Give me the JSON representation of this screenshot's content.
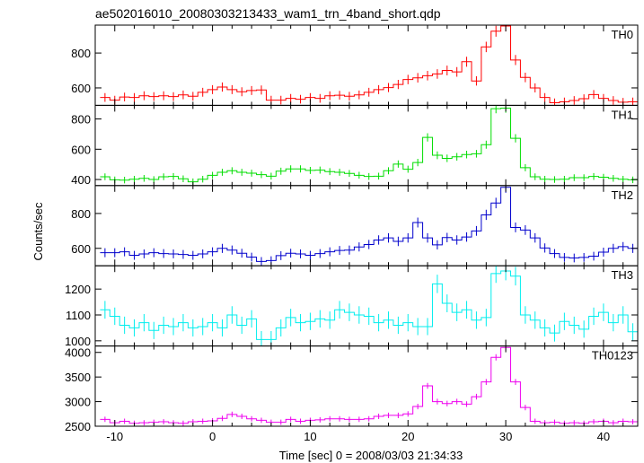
{
  "chart_data": {
    "type": "line",
    "title": "ae502016010_20080303213433_wam1_trn_4band_short.qdp",
    "xlabel": "Time [sec] 0 = 2008/03/03 21:34:33",
    "ylabel": "Counts/sec",
    "xlim": [
      -12,
      43.5
    ],
    "x_ticks": [
      -10,
      0,
      10,
      20,
      30,
      40
    ],
    "x_start": -11.5,
    "bin_width": 1.0,
    "x_error_bars": true,
    "grid": false,
    "panels": [
      {
        "name": "TH0",
        "color": "#ff0000",
        "ylim": [
          500,
          960
        ],
        "y_ticks": [
          600,
          800
        ],
        "values": [
          545,
          530,
          548,
          545,
          555,
          550,
          555,
          550,
          560,
          552,
          575,
          590,
          605,
          590,
          578,
          585,
          588,
          530,
          530,
          540,
          535,
          545,
          540,
          555,
          558,
          552,
          560,
          575,
          590,
          602,
          620,
          648,
          658,
          670,
          680,
          700,
          692,
          750,
          640,
          835,
          925,
          955,
          760,
          660,
          600,
          545,
          515,
          520,
          528,
          538,
          562,
          540,
          528,
          518,
          520,
          545,
          560,
          550,
          542,
          548,
          545,
          515,
          505,
          538,
          545,
          550,
          545,
          545,
          560,
          552,
          546,
          548,
          541,
          542
        ]
      },
      {
        "name": "TH1",
        "color": "#00dd00",
        "ylim": [
          360,
          890
        ],
        "y_ticks": [
          400,
          600,
          800
        ],
        "values": [
          418,
          398,
          396,
          402,
          408,
          400,
          418,
          420,
          405,
          385,
          402,
          428,
          448,
          458,
          448,
          442,
          432,
          422,
          455,
          470,
          470,
          460,
          462,
          452,
          448,
          440,
          428,
          420,
          422,
          458,
          502,
          468,
          512,
          678,
          560,
          540,
          550,
          565,
          570,
          630,
          868,
          872,
          672,
          478,
          418,
          402,
          400,
          402,
          412,
          412,
          420,
          415,
          408,
          402,
          398,
          408,
          400,
          405,
          400,
          402,
          410,
          425,
          405,
          398,
          408,
          418,
          402,
          398,
          388,
          395,
          398,
          408,
          418,
          412
        ]
      },
      {
        "name": "TH2",
        "color": "#0000cc",
        "ylim": [
          500,
          960
        ],
        "y_ticks": [
          600,
          800
        ],
        "values": [
          575,
          575,
          580,
          560,
          568,
          575,
          570,
          568,
          565,
          560,
          568,
          580,
          600,
          590,
          572,
          550,
          525,
          530,
          558,
          572,
          568,
          560,
          570,
          580,
          588,
          590,
          608,
          622,
          648,
          660,
          640,
          660,
          748,
          660,
          620,
          662,
          648,
          665,
          700,
          792,
          860,
          950,
          720,
          705,
          660,
          602,
          570,
          548,
          545,
          548,
          555,
          578,
          600,
          610,
          600,
          568,
          540,
          555,
          578,
          590,
          598,
          610,
          610,
          600,
          600,
          608,
          598,
          592,
          580,
          568,
          565,
          560,
          558,
          553
        ]
      },
      {
        "name": "TH3",
        "color": "#00eeee",
        "ylim": [
          980,
          1290
        ],
        "y_ticks": [
          1000,
          1100,
          1200
        ],
        "values": [
          1120,
          1095,
          1060,
          1050,
          1070,
          1040,
          1060,
          1055,
          1070,
          1050,
          1055,
          1070,
          1050,
          1100,
          1060,
          1085,
          1005,
          1005,
          1050,
          1090,
          1070,
          1075,
          1085,
          1080,
          1120,
          1110,
          1100,
          1095,
          1070,
          1080,
          1060,
          1070,
          1055,
          1055,
          1220,
          1145,
          1110,
          1120,
          1080,
          1090,
          1260,
          1270,
          1250,
          1100,
          1080,
          1050,
          1030,
          1075,
          1060,
          1045,
          1095,
          1110,
          1070,
          1100,
          1035,
          1010,
          1050,
          1060,
          1040,
          1075,
          1050,
          1080,
          1100,
          1110,
          1070,
          1090,
          1060,
          1050,
          1100,
          1060,
          1090,
          1140,
          1080,
          1090
        ]
      },
      {
        "name": "TH0123",
        "color": "#ee00ee",
        "ylim": [
          2500,
          4130
        ],
        "y_ticks": [
          2500,
          3000,
          3500,
          4000
        ],
        "values": [
          2640,
          2570,
          2600,
          2560,
          2570,
          2580,
          2590,
          2570,
          2560,
          2590,
          2600,
          2610,
          2660,
          2740,
          2700,
          2650,
          2620,
          2580,
          2580,
          2640,
          2600,
          2620,
          2630,
          2650,
          2650,
          2640,
          2640,
          2650,
          2700,
          2720,
          2720,
          2750,
          2900,
          3320,
          3000,
          2960,
          3000,
          2950,
          3100,
          3400,
          3900,
          4100,
          3400,
          2880,
          2600,
          2570,
          2580,
          2560,
          2570,
          2560,
          2590,
          2600,
          2570,
          2600,
          2590,
          2560,
          2570,
          2580,
          2600,
          2590,
          2580,
          2600,
          2580,
          2570,
          2570,
          2590,
          2600,
          2590,
          2580,
          2560,
          2570,
          2590,
          2620,
          2600
        ]
      }
    ]
  }
}
